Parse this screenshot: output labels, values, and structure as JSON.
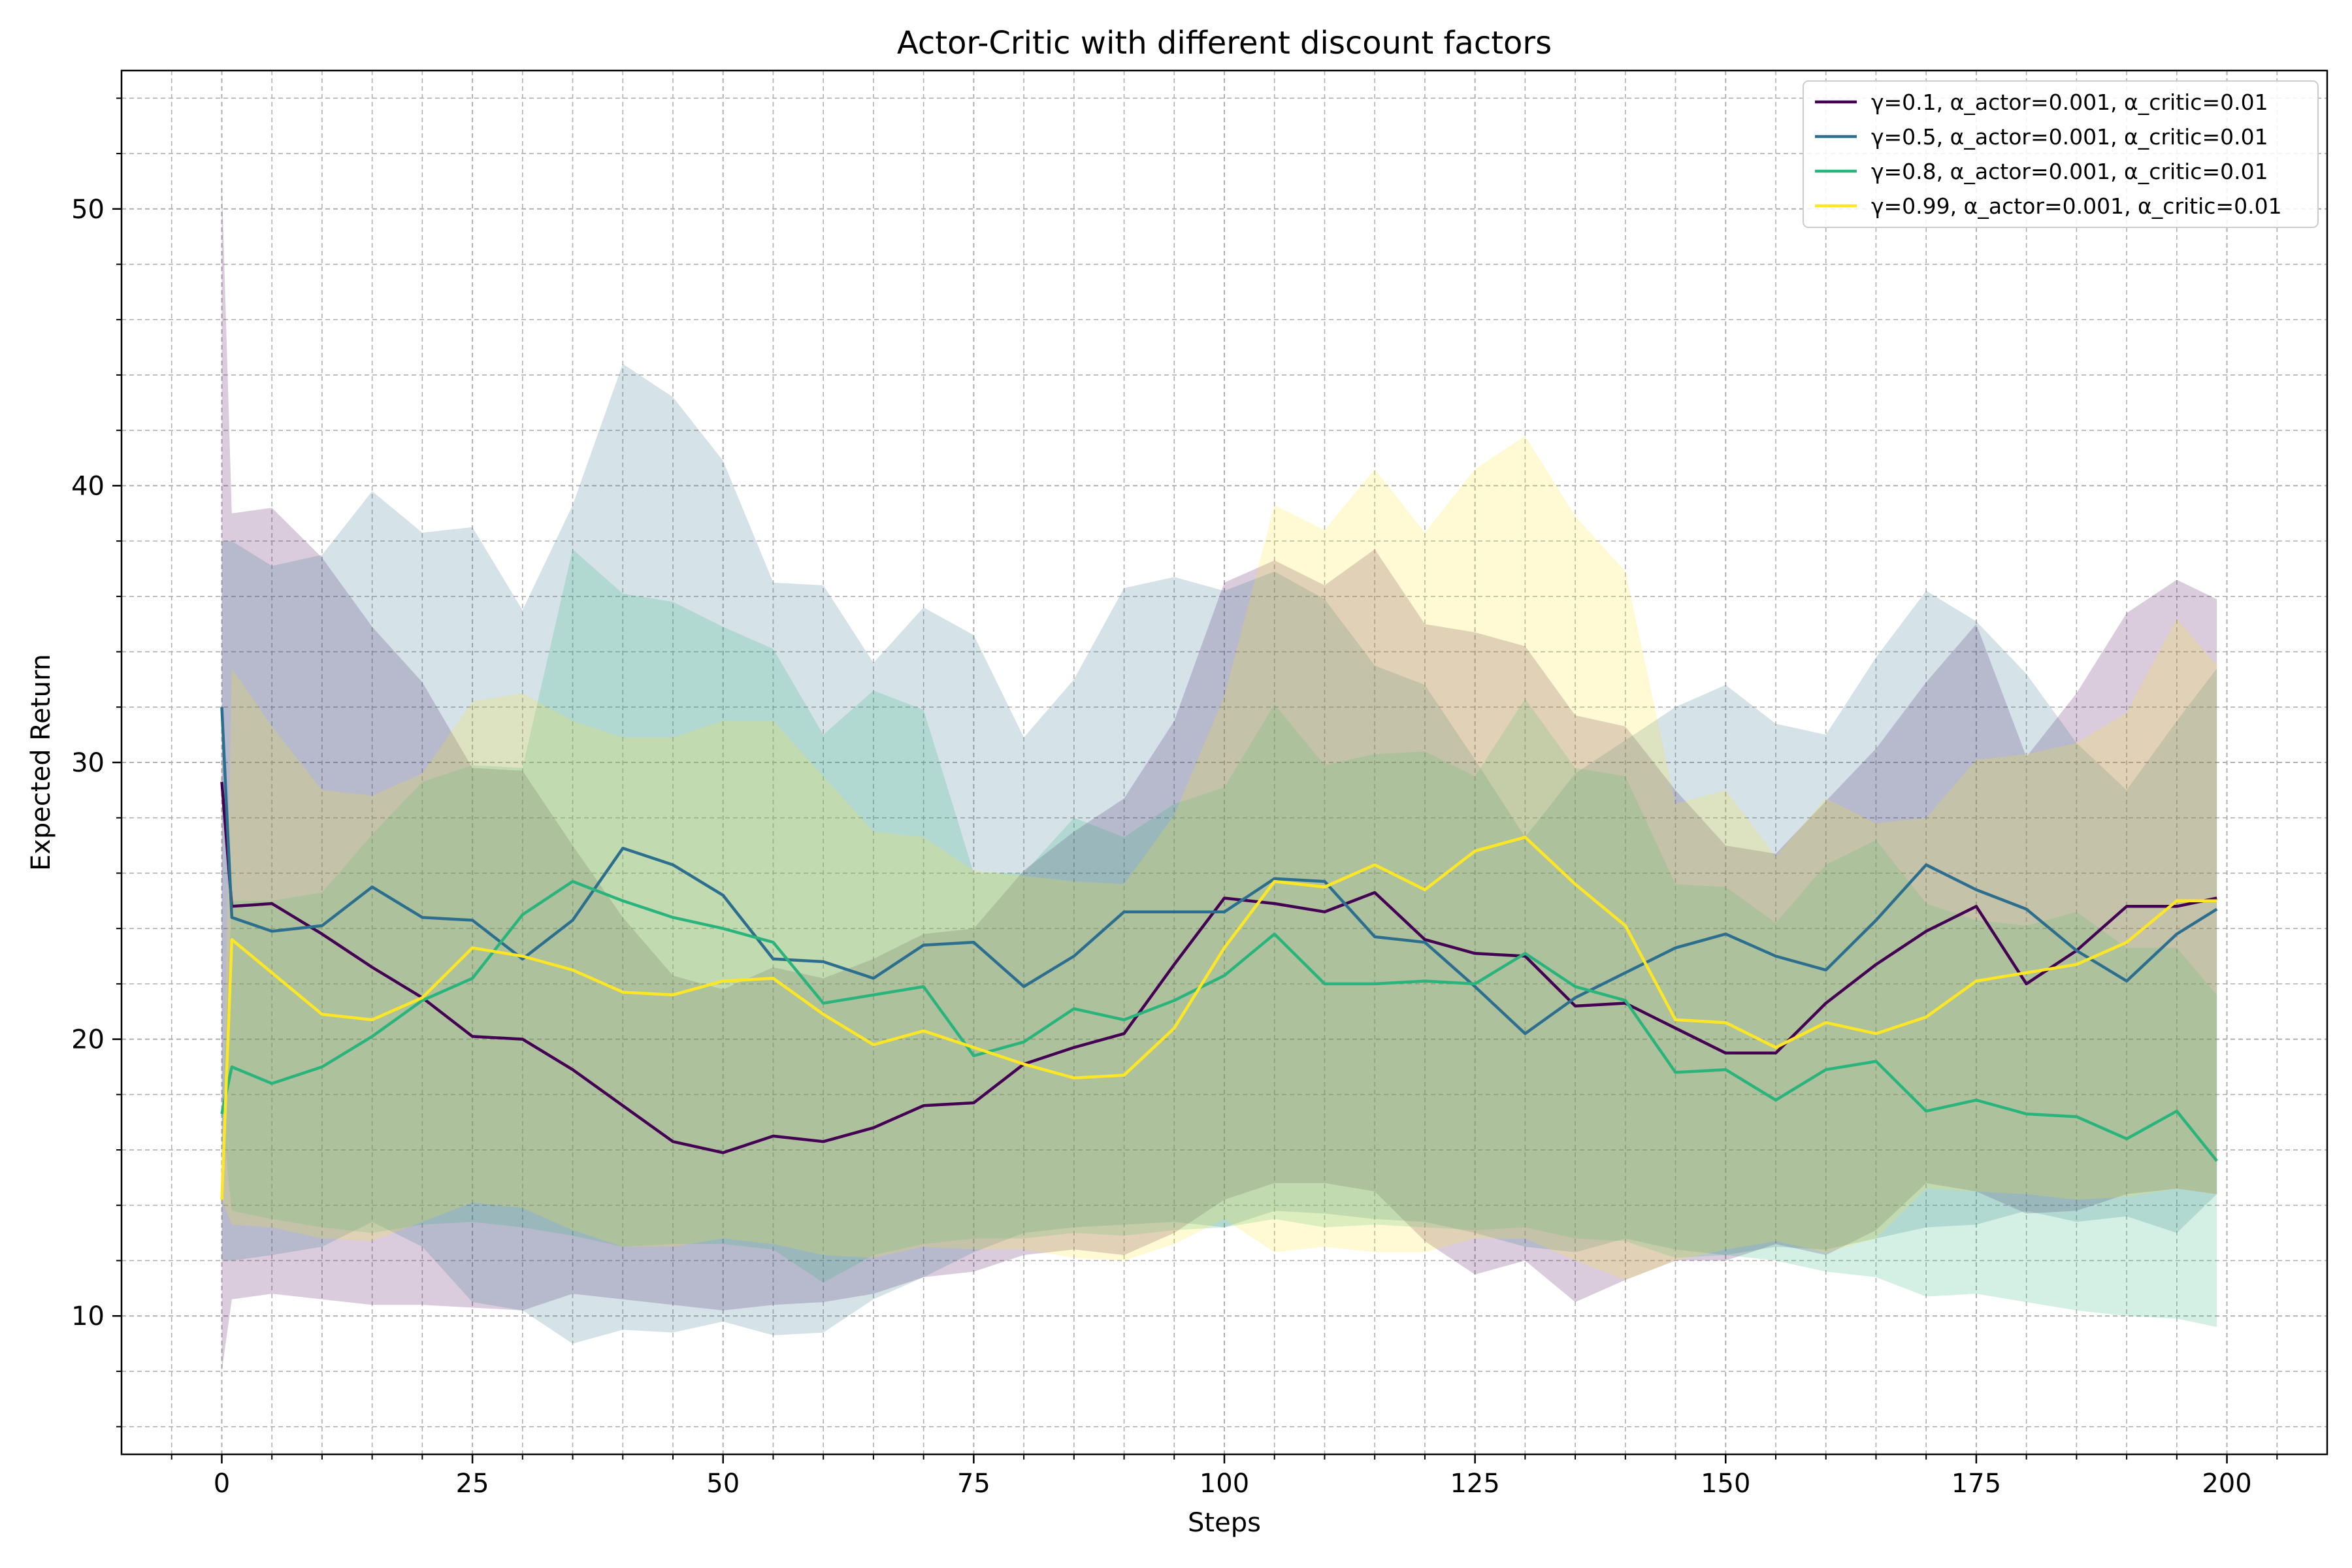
{
  "chart_data": {
    "type": "line",
    "title": "Actor-Critic with different discount factors",
    "xlabel": "Steps",
    "ylabel": "Expected Return",
    "xlim": [
      -10,
      210
    ],
    "ylim": [
      5,
      55
    ],
    "xticks": [
      0,
      25,
      50,
      75,
      100,
      125,
      150,
      175,
      200
    ],
    "yticks": [
      10,
      20,
      30,
      40,
      50
    ],
    "grid": true,
    "minor_grid": true,
    "legend_position": "top-right",
    "band": "shaded range around each mean line",
    "x": [
      0,
      1,
      5,
      10,
      15,
      20,
      25,
      30,
      35,
      40,
      45,
      50,
      55,
      60,
      65,
      70,
      75,
      80,
      85,
      90,
      95,
      100,
      105,
      110,
      115,
      120,
      125,
      130,
      135,
      140,
      145,
      150,
      155,
      160,
      165,
      170,
      175,
      180,
      185,
      190,
      195,
      199
    ],
    "series": [
      {
        "name": "γ=0.1, α_actor=0.001, α_critic=0.01",
        "color": "#440154",
        "values": [
          29.3,
          24.8,
          24.9,
          23.8,
          22.6,
          21.5,
          20.1,
          20.0,
          18.9,
          17.6,
          16.3,
          15.9,
          16.5,
          16.3,
          16.8,
          17.6,
          17.7,
          19.1,
          19.7,
          20.2,
          22.7,
          25.1,
          24.9,
          24.6,
          25.3,
          23.6,
          23.1,
          23.0,
          21.2,
          21.3,
          20.4,
          19.5,
          19.5,
          21.3,
          22.7,
          23.9,
          24.8,
          22.0,
          23.2,
          24.8,
          24.8,
          25.1
        ],
        "upper": [
          51.0,
          39.0,
          39.2,
          37.4,
          34.9,
          32.9,
          29.8,
          29.7,
          27.0,
          24.4,
          22.3,
          21.8,
          22.6,
          22.2,
          22.9,
          23.8,
          24.0,
          26.1,
          27.5,
          28.7,
          31.5,
          36.5,
          37.3,
          36.4,
          37.7,
          35.0,
          34.7,
          34.2,
          31.7,
          31.3,
          29.0,
          27.0,
          26.7,
          28.6,
          30.5,
          32.9,
          35.0,
          30.2,
          32.5,
          35.4,
          36.6,
          35.9
        ],
        "lower": [
          8.0,
          10.6,
          10.8,
          10.6,
          10.4,
          10.4,
          10.3,
          10.2,
          10.8,
          10.6,
          10.4,
          10.2,
          10.4,
          10.5,
          10.8,
          11.4,
          11.6,
          12.2,
          12.4,
          12.2,
          13.0,
          14.2,
          14.8,
          14.8,
          14.5,
          12.7,
          11.5,
          12.0,
          10.5,
          11.3,
          12.0,
          12.0,
          12.6,
          12.2,
          13.1,
          14.8,
          14.5,
          13.7,
          13.8,
          14.4,
          14.6,
          14.4
        ]
      },
      {
        "name": "γ=0.5, α_actor=0.001, α_critic=0.01",
        "color": "#2c6e8e",
        "values": [
          32.0,
          24.4,
          23.9,
          24.1,
          25.5,
          24.4,
          24.3,
          22.9,
          24.3,
          26.9,
          26.3,
          25.2,
          22.9,
          22.8,
          22.2,
          23.4,
          23.5,
          21.9,
          23.0,
          24.6,
          24.6,
          24.6,
          25.8,
          25.7,
          23.7,
          23.5,
          21.9,
          20.2,
          21.5,
          22.4,
          23.3,
          23.8,
          23.0,
          22.5,
          24.3,
          26.3,
          25.4,
          24.7,
          23.2,
          22.1,
          23.8,
          24.7
        ],
        "upper": [
          38.0,
          38.0,
          37.1,
          37.5,
          39.8,
          38.3,
          38.5,
          35.5,
          39.3,
          44.4,
          43.2,
          40.9,
          36.5,
          36.4,
          33.6,
          35.6,
          34.6,
          30.9,
          33.0,
          36.3,
          36.7,
          36.2,
          36.9,
          35.9,
          33.5,
          32.8,
          30.1,
          27.3,
          29.6,
          30.8,
          32.0,
          32.8,
          31.4,
          31.0,
          33.8,
          36.2,
          35.1,
          33.2,
          30.7,
          29.0,
          31.5,
          33.4
        ],
        "lower": [
          12.0,
          12.0,
          12.2,
          12.5,
          13.4,
          12.5,
          10.5,
          10.2,
          9.0,
          9.5,
          9.4,
          9.8,
          9.3,
          9.4,
          10.6,
          11.4,
          12.3,
          13.0,
          13.2,
          13.3,
          13.4,
          13.2,
          13.8,
          13.7,
          13.5,
          13.4,
          13.0,
          12.5,
          12.3,
          12.8,
          12.4,
          12.2,
          12.5,
          12.4,
          12.8,
          13.2,
          13.3,
          13.8,
          13.4,
          13.6,
          13.0,
          14.4
        ]
      },
      {
        "name": "γ=0.8, α_actor=0.001, α_critic=0.01",
        "color": "#29b47c",
        "values": [
          17.3,
          19.0,
          18.4,
          19.0,
          20.1,
          21.4,
          22.2,
          24.5,
          25.7,
          25.0,
          24.4,
          24.0,
          23.5,
          21.3,
          21.6,
          21.9,
          19.4,
          19.9,
          21.1,
          20.7,
          21.4,
          22.3,
          23.8,
          22.0,
          22.0,
          22.1,
          22.0,
          23.1,
          21.9,
          21.4,
          18.8,
          18.9,
          17.8,
          18.9,
          19.2,
          17.4,
          17.8,
          17.3,
          17.2,
          16.4,
          17.4,
          15.6
        ],
        "upper": [
          17.3,
          25.0,
          25.0,
          25.3,
          27.4,
          29.3,
          29.9,
          29.8,
          37.7,
          36.1,
          35.8,
          34.9,
          34.1,
          31.0,
          32.6,
          31.9,
          26.0,
          26.0,
          28.0,
          27.3,
          28.5,
          29.1,
          32.1,
          29.9,
          30.3,
          30.4,
          29.5,
          32.3,
          29.8,
          29.5,
          25.6,
          25.5,
          24.2,
          26.3,
          27.2,
          24.9,
          24.3,
          24.1,
          24.6,
          23.3,
          23.3,
          21.6
        ],
        "lower": [
          17.3,
          13.8,
          13.5,
          13.2,
          13.0,
          13.3,
          13.4,
          13.2,
          12.9,
          12.5,
          12.6,
          12.6,
          12.4,
          11.2,
          12.2,
          12.6,
          12.8,
          12.8,
          13.0,
          12.9,
          13.1,
          13.2,
          13.5,
          13.2,
          13.3,
          13.2,
          13.1,
          13.2,
          12.8,
          12.7,
          12.1,
          12.2,
          12.0,
          11.6,
          11.4,
          10.7,
          10.8,
          10.5,
          10.2,
          10.0,
          9.9,
          9.6
        ]
      },
      {
        "name": "γ=0.99, α_actor=0.001, α_critic=0.01",
        "color": "#fde725",
        "values": [
          14.2,
          23.6,
          22.4,
          20.9,
          20.7,
          21.5,
          23.3,
          23.0,
          22.5,
          21.7,
          21.6,
          22.1,
          22.2,
          20.9,
          19.8,
          20.3,
          19.7,
          19.1,
          18.6,
          18.7,
          20.4,
          23.3,
          25.7,
          25.5,
          26.3,
          25.4,
          26.8,
          27.3,
          25.6,
          24.1,
          20.7,
          20.6,
          19.7,
          20.6,
          20.2,
          20.8,
          22.1,
          22.4,
          22.7,
          23.5,
          25.0,
          25.0
        ],
        "upper": [
          14.2,
          33.4,
          31.3,
          29.0,
          28.8,
          29.6,
          32.2,
          32.5,
          31.5,
          30.9,
          30.9,
          31.5,
          31.5,
          29.5,
          27.5,
          27.3,
          26.1,
          25.9,
          25.7,
          25.6,
          28.1,
          32.4,
          39.3,
          38.4,
          40.6,
          38.3,
          40.6,
          41.8,
          38.9,
          36.9,
          28.5,
          29.0,
          26.6,
          28.7,
          27.8,
          28.0,
          30.1,
          30.3,
          30.7,
          31.8,
          35.2,
          33.5
        ],
        "lower": [
          14.2,
          13.3,
          13.2,
          12.8,
          12.7,
          13.4,
          14.1,
          13.9,
          13.1,
          12.5,
          12.5,
          12.8,
          12.6,
          12.2,
          12.1,
          12.5,
          12.4,
          12.4,
          12.1,
          12.0,
          12.6,
          13.5,
          12.3,
          12.5,
          12.3,
          12.3,
          12.8,
          12.8,
          12.0,
          11.3,
          12.0,
          12.4,
          12.7,
          12.3,
          12.8,
          14.6,
          14.5,
          14.4,
          14.2,
          14.3,
          14.6,
          14.4
        ]
      }
    ]
  }
}
